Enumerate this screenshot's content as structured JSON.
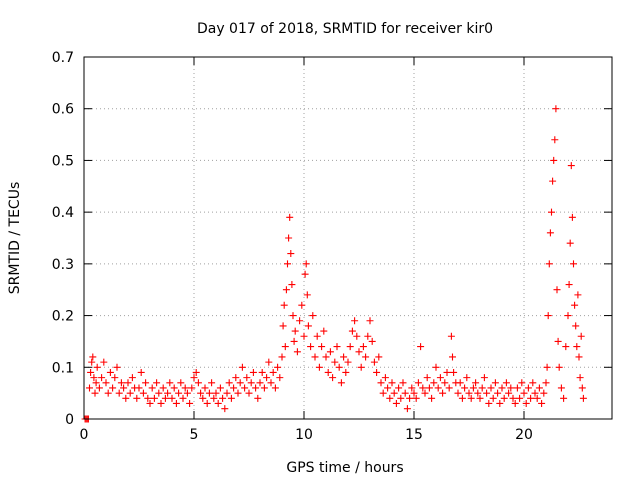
{
  "chart_data": {
    "type": "scatter",
    "title": "Day 017 of 2018, SRMTID for receiver kir0",
    "xlabel": "GPS time / hours",
    "ylabel": "SRMTID / TECUs",
    "xlim": [
      0,
      24
    ],
    "ylim": [
      0,
      0.7
    ],
    "xticks": [
      0,
      5,
      10,
      15,
      20
    ],
    "yticks": [
      0,
      0.1,
      0.2,
      0.3,
      0.4,
      0.5,
      0.6,
      0.7
    ],
    "xtick_labels": [
      "0",
      "5",
      "10",
      "15",
      "20"
    ],
    "ytick_labels": [
      "0",
      "0.1",
      "0.2",
      "0.3",
      "0.4",
      "0.5",
      "0.6",
      "0.7"
    ],
    "grid": true,
    "marker": "+",
    "color": "#ff0000",
    "series": [
      {
        "name": "SRMTID",
        "points": [
          [
            0.05,
            0.0
          ],
          [
            0.1,
            0.0
          ],
          [
            0.15,
            0.0
          ],
          [
            0.2,
            0.0
          ],
          [
            0.25,
            0.06
          ],
          [
            0.3,
            0.09
          ],
          [
            0.35,
            0.11
          ],
          [
            0.4,
            0.12
          ],
          [
            0.45,
            0.08
          ],
          [
            0.5,
            0.05
          ],
          [
            0.55,
            0.07
          ],
          [
            0.6,
            0.1
          ],
          [
            0.7,
            0.06
          ],
          [
            0.8,
            0.08
          ],
          [
            0.9,
            0.11
          ],
          [
            1.0,
            0.07
          ],
          [
            1.1,
            0.05
          ],
          [
            1.2,
            0.09
          ],
          [
            1.3,
            0.06
          ],
          [
            1.4,
            0.08
          ],
          [
            1.5,
            0.1
          ],
          [
            1.6,
            0.05
          ],
          [
            1.7,
            0.07
          ],
          [
            1.8,
            0.06
          ],
          [
            1.9,
            0.04
          ],
          [
            2.0,
            0.07
          ],
          [
            2.1,
            0.05
          ],
          [
            2.2,
            0.08
          ],
          [
            2.3,
            0.06
          ],
          [
            2.4,
            0.04
          ],
          [
            2.5,
            0.06
          ],
          [
            2.6,
            0.09
          ],
          [
            2.7,
            0.05
          ],
          [
            2.8,
            0.07
          ],
          [
            2.9,
            0.04
          ],
          [
            3.0,
            0.03
          ],
          [
            3.1,
            0.06
          ],
          [
            3.2,
            0.04
          ],
          [
            3.3,
            0.07
          ],
          [
            3.4,
            0.05
          ],
          [
            3.5,
            0.03
          ],
          [
            3.6,
            0.06
          ],
          [
            3.7,
            0.04
          ],
          [
            3.8,
            0.05
          ],
          [
            3.9,
            0.07
          ],
          [
            4.0,
            0.04
          ],
          [
            4.1,
            0.06
          ],
          [
            4.2,
            0.03
          ],
          [
            4.3,
            0.05
          ],
          [
            4.4,
            0.07
          ],
          [
            4.5,
            0.04
          ],
          [
            4.6,
            0.06
          ],
          [
            4.7,
            0.05
          ],
          [
            4.8,
            0.03
          ],
          [
            4.9,
            0.06
          ],
          [
            5.0,
            0.08
          ],
          [
            5.1,
            0.09
          ],
          [
            5.2,
            0.07
          ],
          [
            5.3,
            0.05
          ],
          [
            5.4,
            0.04
          ],
          [
            5.5,
            0.06
          ],
          [
            5.6,
            0.03
          ],
          [
            5.7,
            0.05
          ],
          [
            5.8,
            0.07
          ],
          [
            5.9,
            0.04
          ],
          [
            6.0,
            0.05
          ],
          [
            6.1,
            0.03
          ],
          [
            6.2,
            0.06
          ],
          [
            6.3,
            0.04
          ],
          [
            6.4,
            0.02
          ],
          [
            6.5,
            0.05
          ],
          [
            6.6,
            0.07
          ],
          [
            6.7,
            0.04
          ],
          [
            6.8,
            0.06
          ],
          [
            6.9,
            0.08
          ],
          [
            7.0,
            0.05
          ],
          [
            7.1,
            0.07
          ],
          [
            7.2,
            0.1
          ],
          [
            7.3,
            0.06
          ],
          [
            7.4,
            0.08
          ],
          [
            7.5,
            0.05
          ],
          [
            7.6,
            0.07
          ],
          [
            7.7,
            0.09
          ],
          [
            7.8,
            0.06
          ],
          [
            7.9,
            0.04
          ],
          [
            8.0,
            0.07
          ],
          [
            8.1,
            0.09
          ],
          [
            8.2,
            0.06
          ],
          [
            8.3,
            0.08
          ],
          [
            8.4,
            0.11
          ],
          [
            8.5,
            0.07
          ],
          [
            8.6,
            0.09
          ],
          [
            8.7,
            0.06
          ],
          [
            8.8,
            0.1
          ],
          [
            8.9,
            0.08
          ],
          [
            9.0,
            0.12
          ],
          [
            9.05,
            0.18
          ],
          [
            9.1,
            0.22
          ],
          [
            9.15,
            0.14
          ],
          [
            9.2,
            0.25
          ],
          [
            9.25,
            0.3
          ],
          [
            9.3,
            0.35
          ],
          [
            9.35,
            0.39
          ],
          [
            9.4,
            0.32
          ],
          [
            9.45,
            0.26
          ],
          [
            9.5,
            0.2
          ],
          [
            9.55,
            0.15
          ],
          [
            9.6,
            0.17
          ],
          [
            9.7,
            0.13
          ],
          [
            9.8,
            0.19
          ],
          [
            9.9,
            0.22
          ],
          [
            10.0,
            0.16
          ],
          [
            10.05,
            0.28
          ],
          [
            10.1,
            0.3
          ],
          [
            10.15,
            0.24
          ],
          [
            10.2,
            0.18
          ],
          [
            10.3,
            0.14
          ],
          [
            10.4,
            0.2
          ],
          [
            10.5,
            0.12
          ],
          [
            10.6,
            0.16
          ],
          [
            10.7,
            0.1
          ],
          [
            10.8,
            0.14
          ],
          [
            10.9,
            0.17
          ],
          [
            11.0,
            0.12
          ],
          [
            11.1,
            0.09
          ],
          [
            11.2,
            0.13
          ],
          [
            11.3,
            0.08
          ],
          [
            11.4,
            0.11
          ],
          [
            11.5,
            0.14
          ],
          [
            11.6,
            0.1
          ],
          [
            11.7,
            0.07
          ],
          [
            11.8,
            0.12
          ],
          [
            11.9,
            0.09
          ],
          [
            12.0,
            0.11
          ],
          [
            12.1,
            0.14
          ],
          [
            12.2,
            0.17
          ],
          [
            12.3,
            0.19
          ],
          [
            12.4,
            0.16
          ],
          [
            12.5,
            0.13
          ],
          [
            12.6,
            0.1
          ],
          [
            12.7,
            0.14
          ],
          [
            12.8,
            0.12
          ],
          [
            12.9,
            0.16
          ],
          [
            13.0,
            0.19
          ],
          [
            13.1,
            0.15
          ],
          [
            13.2,
            0.11
          ],
          [
            13.3,
            0.09
          ],
          [
            13.4,
            0.12
          ],
          [
            13.5,
            0.07
          ],
          [
            13.6,
            0.05
          ],
          [
            13.7,
            0.08
          ],
          [
            13.8,
            0.06
          ],
          [
            13.9,
            0.04
          ],
          [
            14.0,
            0.07
          ],
          [
            14.1,
            0.05
          ],
          [
            14.2,
            0.03
          ],
          [
            14.3,
            0.06
          ],
          [
            14.4,
            0.04
          ],
          [
            14.5,
            0.07
          ],
          [
            14.6,
            0.05
          ],
          [
            14.7,
            0.02
          ],
          [
            14.8,
            0.04
          ],
          [
            14.9,
            0.06
          ],
          [
            15.0,
            0.05
          ],
          [
            15.1,
            0.04
          ],
          [
            15.2,
            0.07
          ],
          [
            15.3,
            0.14
          ],
          [
            15.4,
            0.06
          ],
          [
            15.5,
            0.05
          ],
          [
            15.6,
            0.08
          ],
          [
            15.7,
            0.06
          ],
          [
            15.8,
            0.04
          ],
          [
            15.9,
            0.07
          ],
          [
            16.0,
            0.1
          ],
          [
            16.1,
            0.06
          ],
          [
            16.2,
            0.08
          ],
          [
            16.3,
            0.05
          ],
          [
            16.4,
            0.07
          ],
          [
            16.5,
            0.09
          ],
          [
            16.6,
            0.06
          ],
          [
            16.7,
            0.16
          ],
          [
            16.75,
            0.12
          ],
          [
            16.8,
            0.09
          ],
          [
            16.9,
            0.07
          ],
          [
            17.0,
            0.05
          ],
          [
            17.1,
            0.07
          ],
          [
            17.2,
            0.04
          ],
          [
            17.3,
            0.06
          ],
          [
            17.4,
            0.08
          ],
          [
            17.5,
            0.05
          ],
          [
            17.6,
            0.04
          ],
          [
            17.7,
            0.06
          ],
          [
            17.8,
            0.07
          ],
          [
            17.9,
            0.05
          ],
          [
            18.0,
            0.04
          ],
          [
            18.1,
            0.06
          ],
          [
            18.2,
            0.08
          ],
          [
            18.3,
            0.05
          ],
          [
            18.4,
            0.03
          ],
          [
            18.5,
            0.06
          ],
          [
            18.6,
            0.04
          ],
          [
            18.7,
            0.07
          ],
          [
            18.8,
            0.05
          ],
          [
            18.9,
            0.03
          ],
          [
            19.0,
            0.06
          ],
          [
            19.1,
            0.04
          ],
          [
            19.2,
            0.07
          ],
          [
            19.3,
            0.05
          ],
          [
            19.4,
            0.06
          ],
          [
            19.5,
            0.04
          ],
          [
            19.6,
            0.03
          ],
          [
            19.7,
            0.06
          ],
          [
            19.8,
            0.04
          ],
          [
            19.9,
            0.07
          ],
          [
            20.0,
            0.05
          ],
          [
            20.1,
            0.03
          ],
          [
            20.2,
            0.06
          ],
          [
            20.3,
            0.04
          ],
          [
            20.4,
            0.07
          ],
          [
            20.5,
            0.05
          ],
          [
            20.6,
            0.04
          ],
          [
            20.7,
            0.06
          ],
          [
            20.8,
            0.03
          ],
          [
            20.9,
            0.05
          ],
          [
            21.0,
            0.07
          ],
          [
            21.05,
            0.1
          ],
          [
            21.1,
            0.2
          ],
          [
            21.15,
            0.3
          ],
          [
            21.2,
            0.36
          ],
          [
            21.25,
            0.4
          ],
          [
            21.3,
            0.46
          ],
          [
            21.35,
            0.5
          ],
          [
            21.4,
            0.54
          ],
          [
            21.45,
            0.6
          ],
          [
            21.5,
            0.25
          ],
          [
            21.55,
            0.15
          ],
          [
            21.6,
            0.1
          ],
          [
            21.7,
            0.06
          ],
          [
            21.8,
            0.04
          ],
          [
            21.9,
            0.14
          ],
          [
            22.0,
            0.2
          ],
          [
            22.05,
            0.26
          ],
          [
            22.1,
            0.34
          ],
          [
            22.15,
            0.49
          ],
          [
            22.2,
            0.39
          ],
          [
            22.25,
            0.3
          ],
          [
            22.3,
            0.22
          ],
          [
            22.35,
            0.18
          ],
          [
            22.4,
            0.14
          ],
          [
            22.45,
            0.24
          ],
          [
            22.5,
            0.12
          ],
          [
            22.55,
            0.08
          ],
          [
            22.6,
            0.16
          ],
          [
            22.65,
            0.06
          ],
          [
            22.7,
            0.04
          ]
        ]
      }
    ]
  }
}
